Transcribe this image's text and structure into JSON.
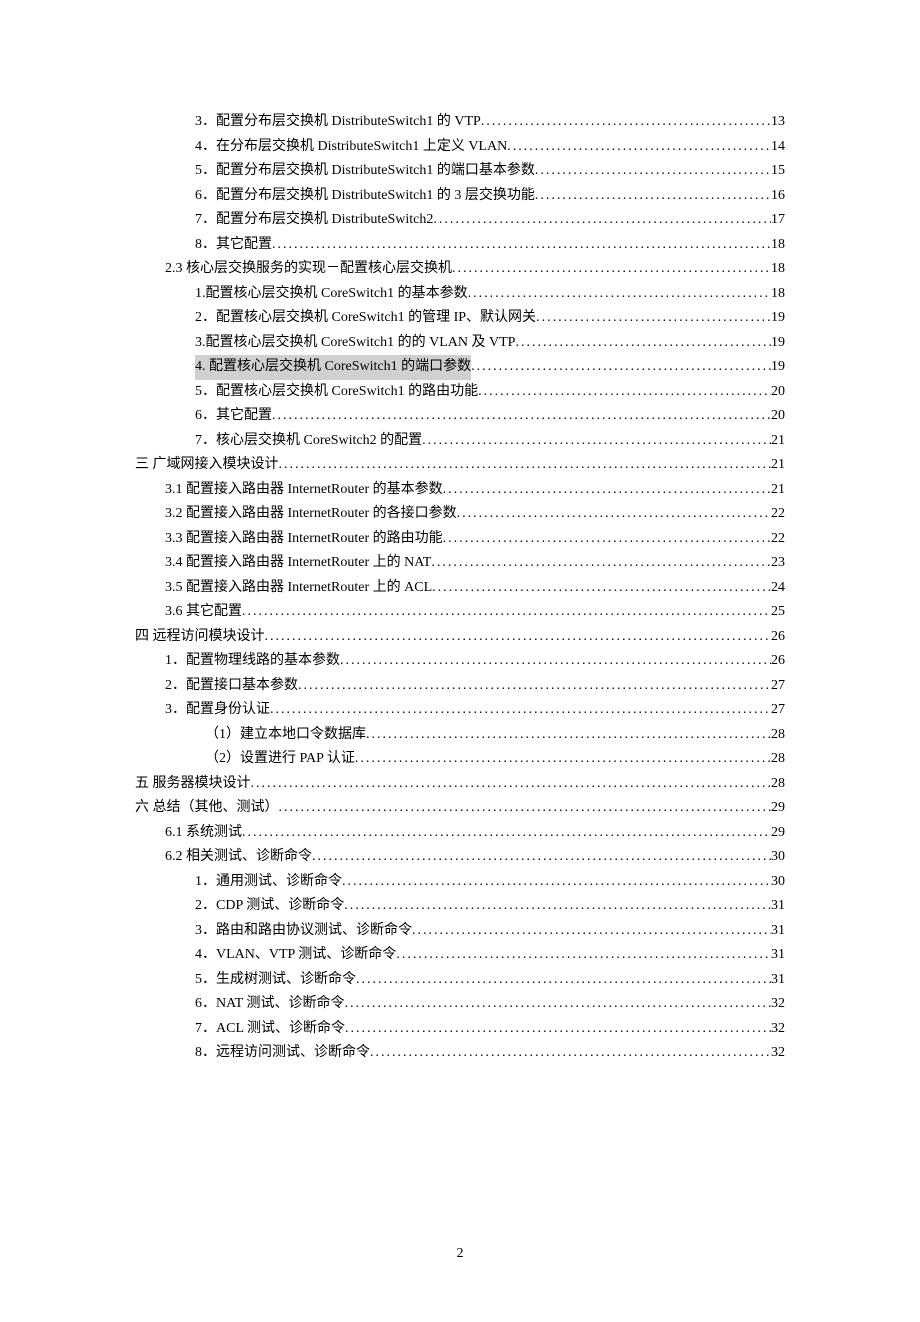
{
  "toc": {
    "entries": [
      {
        "indent": 2,
        "label": "3．配置分布层交换机 DistributeSwitch1 的 VTP",
        "page": "13",
        "highlight": false
      },
      {
        "indent": 2,
        "label": "4．在分布层交换机 DistributeSwitch1 上定义 VLAN",
        "page": "14",
        "highlight": false
      },
      {
        "indent": 2,
        "label": "5．配置分布层交换机 DistributeSwitch1 的端口基本参数",
        "page": "15",
        "highlight": false
      },
      {
        "indent": 2,
        "label": "6．配置分布层交换机 DistributeSwitch1 的 3 层交换功能",
        "page": "16",
        "highlight": false
      },
      {
        "indent": 2,
        "label": "7．配置分布层交换机 DistributeSwitch2",
        "page": "17",
        "highlight": false
      },
      {
        "indent": 2,
        "label": "8．其它配置",
        "page": "18",
        "highlight": false
      },
      {
        "indent": 1,
        "label": "2.3 核心层交换服务的实现－配置核心层交换机",
        "page": "18",
        "highlight": false
      },
      {
        "indent": 2,
        "label": "1.配置核心层交换机 CoreSwitch1 的基本参数",
        "page": "18",
        "highlight": false
      },
      {
        "indent": 2,
        "label": "2．配置核心层交换机 CoreSwitch1 的管理 IP、默认网关",
        "page": "19",
        "highlight": false
      },
      {
        "indent": 2,
        "label": "3.配置核心层交换机 CoreSwitch1 的的 VLAN 及 VTP",
        "page": "19",
        "highlight": false
      },
      {
        "indent": 2,
        "label": "4. 配置核心层交换机 CoreSwitch1 的端口参数",
        "page": "19",
        "highlight": true
      },
      {
        "indent": 2,
        "label": "5．配置核心层交换机 CoreSwitch1 的路由功能",
        "page": "20",
        "highlight": false
      },
      {
        "indent": 2,
        "label": "6．其它配置",
        "page": "20",
        "highlight": false
      },
      {
        "indent": 2,
        "label": "7．核心层交换机 CoreSwitch2 的配置",
        "page": "21",
        "highlight": false
      },
      {
        "indent": 0,
        "label": "三  广域网接入模块设计",
        "page": "21",
        "highlight": false
      },
      {
        "indent": 1,
        "label": "3.1 配置接入路由器 InternetRouter 的基本参数",
        "page": "21",
        "highlight": false
      },
      {
        "indent": 1,
        "label": "3.2 配置接入路由器 InternetRouter 的各接口参数",
        "page": "22",
        "highlight": false
      },
      {
        "indent": 1,
        "label": "3.3 配置接入路由器 InternetRouter 的路由功能",
        "page": "22",
        "highlight": false
      },
      {
        "indent": 1,
        "label": "3.4 配置接入路由器 InternetRouter 上的 NAT",
        "page": "23",
        "highlight": false
      },
      {
        "indent": 1,
        "label": "3.5 配置接入路由器 InternetRouter 上的 ACL",
        "page": "24",
        "highlight": false
      },
      {
        "indent": 1,
        "label": "3.6 其它配置",
        "page": "25",
        "highlight": false
      },
      {
        "indent": 0,
        "label": "四  远程访问模块设计",
        "page": "26",
        "highlight": false
      },
      {
        "indent": 1,
        "label": "1．配置物理线路的基本参数",
        "page": "26",
        "highlight": false
      },
      {
        "indent": 1,
        "label": "2．配置接口基本参数",
        "page": "27",
        "highlight": false
      },
      {
        "indent": 1,
        "label": "3．配置身份认证",
        "page": "27",
        "highlight": false
      },
      {
        "indent": 3,
        "label": "（1）建立本地口令数据库",
        "page": "28",
        "highlight": false
      },
      {
        "indent": 3,
        "label": "（2）设置进行 PAP 认证",
        "page": "28",
        "highlight": false
      },
      {
        "indent": 0,
        "label": "五  服务器模块设计",
        "page": "28",
        "highlight": false
      },
      {
        "indent": 0,
        "label": "六  总结（其他、测试）",
        "page": "29",
        "highlight": false
      },
      {
        "indent": 1,
        "label": "6.1 系统测试",
        "page": "29",
        "highlight": false
      },
      {
        "indent": 1,
        "label": "6.2 相关测试、诊断命令",
        "page": "30",
        "highlight": false
      },
      {
        "indent": 2,
        "label": "1．通用测试、诊断命令",
        "page": "30",
        "highlight": false
      },
      {
        "indent": 2,
        "label": "2．CDP 测试、诊断命令",
        "page": "31",
        "highlight": false
      },
      {
        "indent": 2,
        "label": "3．路由和路由协议测试、诊断命令",
        "page": "31",
        "highlight": false
      },
      {
        "indent": 2,
        "label": "4．VLAN、VTP 测试、诊断命令",
        "page": "31",
        "highlight": false
      },
      {
        "indent": 2,
        "label": "5．生成树测试、诊断命令",
        "page": "31",
        "highlight": false
      },
      {
        "indent": 2,
        "label": "6．NAT 测试、诊断命令",
        "page": "32",
        "highlight": false
      },
      {
        "indent": 2,
        "label": "7．ACL 测试、诊断命令",
        "page": "32",
        "highlight": false
      },
      {
        "indent": 2,
        "label": "8．远程访问测试、诊断命令",
        "page": "32",
        "highlight": false
      }
    ]
  },
  "footer": {
    "page_number": "2"
  }
}
